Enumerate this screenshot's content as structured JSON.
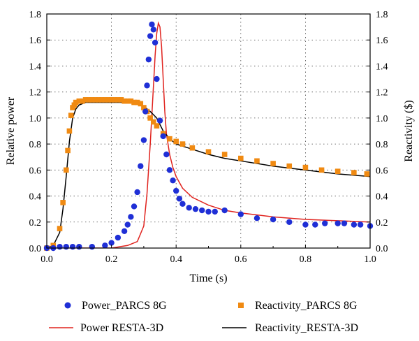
{
  "chart_data": {
    "type": "line",
    "title": "",
    "xlabel": "Time (s)",
    "ylabel": "Relative power",
    "y2label": "Reactivity ($)",
    "xlim": [
      0,
      1.0
    ],
    "ylim": [
      0,
      1.8
    ],
    "y2lim": [
      0,
      1.8
    ],
    "x_ticks": [
      "0.0",
      "0.2",
      "0.4",
      "0.6",
      "0.8",
      "1.0"
    ],
    "y_ticks": [
      "0.0",
      "0.2",
      "0.4",
      "0.6",
      "0.8",
      "1.0",
      "1.2",
      "1.4",
      "1.6",
      "1.8"
    ],
    "y2_ticks": [
      "0.0",
      "0.2",
      "0.4",
      "0.6",
      "0.8",
      "1.0",
      "1.2",
      "1.4",
      "1.6",
      "1.8"
    ],
    "grid": true,
    "legend_position": "bottom",
    "colors": {
      "power_parcs": "#1f2fd6",
      "reactivity_parcs": "#f08a12",
      "power_resta": "#e0231e",
      "reactivity_resta": "#000000"
    },
    "series": [
      {
        "name": "Power_PARCS 8G",
        "style": "circle-markers",
        "axis": "left",
        "x": [
          0.0,
          0.02,
          0.04,
          0.06,
          0.08,
          0.1,
          0.14,
          0.18,
          0.2,
          0.22,
          0.24,
          0.25,
          0.26,
          0.27,
          0.28,
          0.29,
          0.3,
          0.305,
          0.31,
          0.315,
          0.32,
          0.325,
          0.33,
          0.335,
          0.34,
          0.35,
          0.36,
          0.37,
          0.38,
          0.39,
          0.4,
          0.41,
          0.42,
          0.44,
          0.46,
          0.48,
          0.5,
          0.52,
          0.55,
          0.6,
          0.65,
          0.7,
          0.75,
          0.8,
          0.83,
          0.86,
          0.9,
          0.92,
          0.95,
          0.97,
          1.0
        ],
        "y": [
          0.0,
          0.0,
          0.01,
          0.01,
          0.01,
          0.01,
          0.01,
          0.02,
          0.04,
          0.08,
          0.13,
          0.18,
          0.24,
          0.32,
          0.43,
          0.63,
          0.83,
          1.05,
          1.25,
          1.45,
          1.63,
          1.72,
          1.68,
          1.58,
          1.3,
          0.98,
          0.86,
          0.72,
          0.6,
          0.52,
          0.44,
          0.38,
          0.34,
          0.31,
          0.3,
          0.29,
          0.28,
          0.28,
          0.29,
          0.26,
          0.23,
          0.22,
          0.2,
          0.18,
          0.18,
          0.19,
          0.19,
          0.19,
          0.18,
          0.18,
          0.17
        ]
      },
      {
        "name": "Reactivity_PARCS 8G",
        "style": "square-markers",
        "axis": "right",
        "x": [
          0.0,
          0.02,
          0.04,
          0.05,
          0.06,
          0.065,
          0.07,
          0.075,
          0.08,
          0.085,
          0.09,
          0.1,
          0.11,
          0.12,
          0.13,
          0.14,
          0.15,
          0.16,
          0.17,
          0.18,
          0.19,
          0.2,
          0.21,
          0.22,
          0.23,
          0.24,
          0.25,
          0.26,
          0.27,
          0.28,
          0.29,
          0.3,
          0.31,
          0.32,
          0.33,
          0.34,
          0.36,
          0.38,
          0.4,
          0.42,
          0.45,
          0.5,
          0.55,
          0.6,
          0.65,
          0.7,
          0.75,
          0.8,
          0.85,
          0.9,
          0.95,
          0.99
        ],
        "y": [
          0.0,
          0.02,
          0.15,
          0.35,
          0.6,
          0.75,
          0.9,
          1.02,
          1.08,
          1.1,
          1.12,
          1.13,
          1.13,
          1.14,
          1.14,
          1.14,
          1.14,
          1.14,
          1.14,
          1.14,
          1.14,
          1.14,
          1.14,
          1.14,
          1.14,
          1.13,
          1.13,
          1.13,
          1.12,
          1.12,
          1.11,
          1.08,
          1.05,
          1.0,
          0.97,
          0.94,
          0.88,
          0.84,
          0.82,
          0.8,
          0.77,
          0.74,
          0.72,
          0.69,
          0.67,
          0.65,
          0.63,
          0.62,
          0.6,
          0.59,
          0.58,
          0.57
        ]
      },
      {
        "name": "Power RESTA-3D",
        "style": "line",
        "axis": "left",
        "x": [
          0.0,
          0.1,
          0.2,
          0.25,
          0.28,
          0.3,
          0.31,
          0.32,
          0.33,
          0.335,
          0.34,
          0.345,
          0.35,
          0.355,
          0.36,
          0.365,
          0.37,
          0.38,
          0.39,
          0.4,
          0.42,
          0.45,
          0.5,
          0.55,
          0.6,
          0.7,
          0.8,
          0.9,
          1.0
        ],
        "y": [
          0.0,
          0.0,
          0.0,
          0.02,
          0.05,
          0.17,
          0.42,
          0.8,
          1.25,
          1.48,
          1.65,
          1.73,
          1.7,
          1.55,
          1.3,
          1.05,
          0.88,
          0.72,
          0.62,
          0.55,
          0.46,
          0.39,
          0.33,
          0.29,
          0.27,
          0.24,
          0.22,
          0.21,
          0.2
        ]
      },
      {
        "name": "Reactivity_RESTA-3D",
        "style": "line",
        "axis": "right",
        "x": [
          0.0,
          0.02,
          0.04,
          0.05,
          0.06,
          0.07,
          0.08,
          0.09,
          0.1,
          0.12,
          0.15,
          0.2,
          0.25,
          0.28,
          0.3,
          0.32,
          0.34,
          0.36,
          0.38,
          0.4,
          0.45,
          0.5,
          0.55,
          0.6,
          0.7,
          0.8,
          0.9,
          1.0
        ],
        "y": [
          0.0,
          0.02,
          0.12,
          0.3,
          0.55,
          0.82,
          1.0,
          1.07,
          1.1,
          1.12,
          1.12,
          1.12,
          1.12,
          1.11,
          1.09,
          1.05,
          1.0,
          0.9,
          0.84,
          0.8,
          0.76,
          0.72,
          0.69,
          0.67,
          0.63,
          0.6,
          0.57,
          0.55
        ]
      }
    ]
  }
}
